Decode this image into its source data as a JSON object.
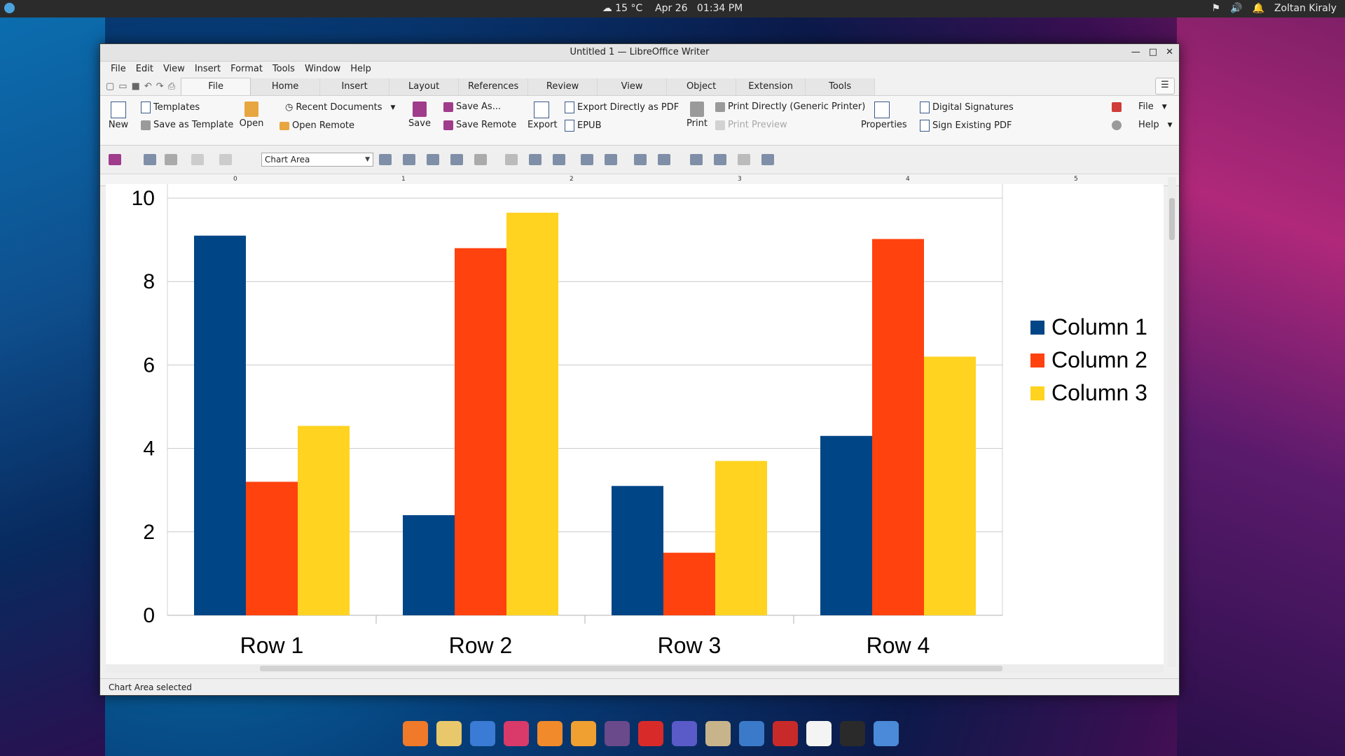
{
  "topbar": {
    "weather": "15 °C",
    "date": "Apr 26",
    "time": "01:34 PM",
    "user": "Zoltan Kiraly"
  },
  "window": {
    "title": "Untitled 1 — LibreOffice Writer"
  },
  "menubar": [
    "File",
    "Edit",
    "View",
    "Insert",
    "Format",
    "Tools",
    "Window",
    "Help"
  ],
  "tabs": [
    "File",
    "Home",
    "Insert",
    "Layout",
    "References",
    "Review",
    "View",
    "Object",
    "Extension",
    "Tools"
  ],
  "ribbon": {
    "new": "New",
    "templates": "Templates",
    "save_as_template": "Save as Template",
    "open": "Open",
    "recent_documents": "Recent Documents",
    "open_remote": "Open Remote",
    "save": "Save",
    "save_as": "Save As...",
    "save_remote": "Save Remote",
    "export": "Export",
    "export_pdf": "Export Directly as PDF",
    "epub": "EPUB",
    "print": "Print",
    "print_directly": "Print Directly (Generic Printer)",
    "print_preview": "Print Preview",
    "properties": "Properties",
    "digital_signatures": "Digital Signatures",
    "sign_pdf": "Sign Existing PDF",
    "file": "File",
    "help": "Help"
  },
  "toolbar": {
    "chart_element": "Chart Area"
  },
  "ruler": [
    "0",
    "1",
    "2",
    "3",
    "4",
    "5"
  ],
  "status": {
    "text": "Chart Area selected"
  },
  "chart_data": {
    "type": "bar",
    "categories": [
      "Row 1",
      "Row 2",
      "Row 3",
      "Row 4"
    ],
    "series": [
      {
        "name": "Column 1",
        "color": "#004586",
        "values": [
          9.1,
          2.4,
          3.1,
          4.3
        ]
      },
      {
        "name": "Column 2",
        "color": "#ff420e",
        "values": [
          3.2,
          8.8,
          1.5,
          9.02
        ]
      },
      {
        "name": "Column 3",
        "color": "#ffd320",
        "values": [
          4.54,
          9.65,
          3.7,
          6.2
        ]
      }
    ],
    "yticks": [
      "0",
      "2",
      "4",
      "6",
      "8",
      "10"
    ],
    "ylim": [
      0,
      10
    ],
    "grid": true,
    "legend": "right"
  }
}
